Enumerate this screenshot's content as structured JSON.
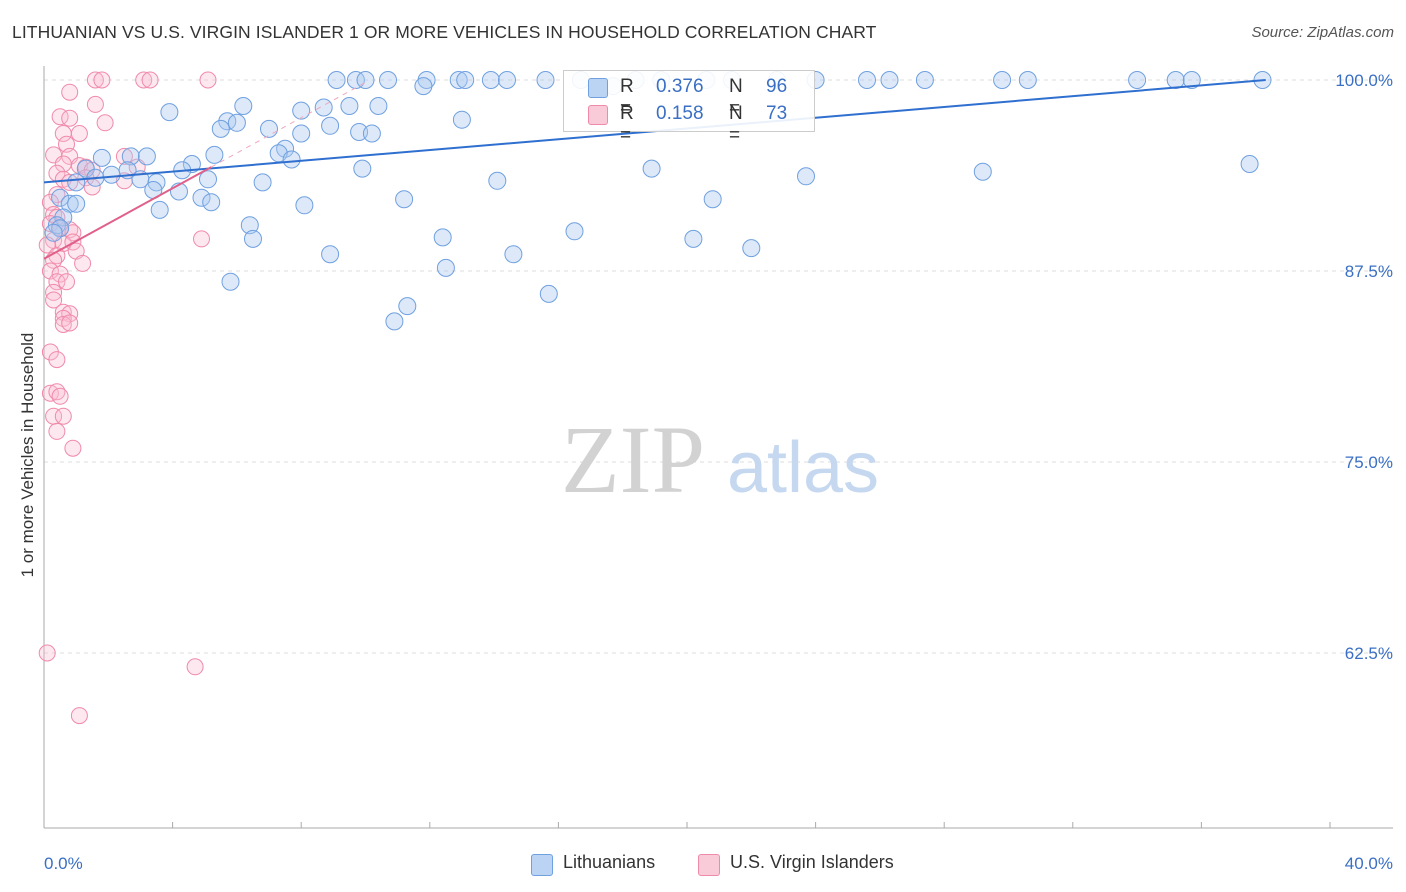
{
  "title": "LITHUANIAN VS U.S. VIRGIN ISLANDER 1 OR MORE VEHICLES IN HOUSEHOLD CORRELATION CHART",
  "source": "Source: ZipAtlas.com",
  "watermark": {
    "zip": "ZIP",
    "atlas": "atlas"
  },
  "legend": {
    "series1": {
      "r_label": "R =",
      "r_value": "0.376",
      "n_label": "N =",
      "n_value": "96"
    },
    "series2": {
      "r_label": "R =",
      "r_value": "0.158",
      "n_label": "N =",
      "n_value": "73"
    }
  },
  "bottom_legend": {
    "series1": "Lithuanians",
    "series2": "U.S. Virgin Islanders"
  },
  "colors": {
    "blue": "#6fa0e0",
    "blue_line": "#2f6fcf",
    "pink": "#f08aaa",
    "pink_line": "#e0608a",
    "axis_text": "#3a6fc4"
  },
  "chart_data": {
    "type": "scatter",
    "title": "LITHUANIAN VS U.S. VIRGIN ISLANDER 1 OR MORE VEHICLES IN HOUSEHOLD CORRELATION CHART",
    "xlabel": "",
    "ylabel": "1 or more Vehicles in Household",
    "xlim": [
      0,
      40
    ],
    "ylim": [
      50,
      101
    ],
    "x_tick_labels": [
      "0.0%",
      "40.0%"
    ],
    "y_ticks": [
      62.5,
      75.0,
      87.5,
      100.0
    ],
    "y_tick_labels": [
      "62.5%",
      "75.0%",
      "87.5%",
      "100.0%"
    ],
    "grid": "horizontal dashed",
    "series": [
      {
        "name": "Lithuanians",
        "color": "#6fa0e0",
        "trend": {
          "x": [
            0,
            38
          ],
          "y": [
            93.3,
            100.0
          ]
        },
        "points": [
          [
            9.1,
            100
          ],
          [
            9.7,
            100
          ],
          [
            10.0,
            100
          ],
          [
            10.7,
            100
          ],
          [
            11.9,
            100
          ],
          [
            12.9,
            100
          ],
          [
            13.1,
            100
          ],
          [
            13.9,
            100
          ],
          [
            14.4,
            100
          ],
          [
            15.6,
            100
          ],
          [
            16.7,
            100
          ],
          [
            18.4,
            100
          ],
          [
            19.2,
            100
          ],
          [
            20.6,
            100
          ],
          [
            21.4,
            100
          ],
          [
            22.8,
            100
          ],
          [
            24.0,
            100
          ],
          [
            25.6,
            100
          ],
          [
            26.3,
            100
          ],
          [
            27.4,
            100
          ],
          [
            29.8,
            100
          ],
          [
            30.6,
            100
          ],
          [
            34.0,
            100
          ],
          [
            35.2,
            100
          ],
          [
            35.7,
            100
          ],
          [
            37.9,
            100
          ],
          [
            11.8,
            99.6
          ],
          [
            17.7,
            99.6
          ],
          [
            10.4,
            98.3
          ],
          [
            6.2,
            98.3
          ],
          [
            8.0,
            98.0
          ],
          [
            8.7,
            98.2
          ],
          [
            9.5,
            98.3
          ],
          [
            3.9,
            97.9
          ],
          [
            5.7,
            97.3
          ],
          [
            6.0,
            97.2
          ],
          [
            5.5,
            96.8
          ],
          [
            7.0,
            96.8
          ],
          [
            8.9,
            97.0
          ],
          [
            13.0,
            97.4
          ],
          [
            8.0,
            96.5
          ],
          [
            9.8,
            96.6
          ],
          [
            10.2,
            96.5
          ],
          [
            7.5,
            95.5
          ],
          [
            5.3,
            95.1
          ],
          [
            2.7,
            95.0
          ],
          [
            3.2,
            95.0
          ],
          [
            1.8,
            94.9
          ],
          [
            4.6,
            94.5
          ],
          [
            7.3,
            95.2
          ],
          [
            7.7,
            94.8
          ],
          [
            1.3,
            94.2
          ],
          [
            1.6,
            93.6
          ],
          [
            2.1,
            93.8
          ],
          [
            2.6,
            94.1
          ],
          [
            4.3,
            94.1
          ],
          [
            3.0,
            93.5
          ],
          [
            3.5,
            93.3
          ],
          [
            1.0,
            93.3
          ],
          [
            3.4,
            92.8
          ],
          [
            4.2,
            92.7
          ],
          [
            5.1,
            93.5
          ],
          [
            6.8,
            93.3
          ],
          [
            9.9,
            94.2
          ],
          [
            14.1,
            93.4
          ],
          [
            18.9,
            94.2
          ],
          [
            23.7,
            93.7
          ],
          [
            29.2,
            94.0
          ],
          [
            37.5,
            94.5
          ],
          [
            0.5,
            92.3
          ],
          [
            0.8,
            91.9
          ],
          [
            1.0,
            91.9
          ],
          [
            4.9,
            92.3
          ],
          [
            5.2,
            92.0
          ],
          [
            11.2,
            92.2
          ],
          [
            3.6,
            91.5
          ],
          [
            8.1,
            91.8
          ],
          [
            20.8,
            92.2
          ],
          [
            0.6,
            91.0
          ],
          [
            0.4,
            90.5
          ],
          [
            0.5,
            90.3
          ],
          [
            0.3,
            90.0
          ],
          [
            6.4,
            90.5
          ],
          [
            16.5,
            90.1
          ],
          [
            12.4,
            89.7
          ],
          [
            6.5,
            89.6
          ],
          [
            20.2,
            89.6
          ],
          [
            14.6,
            88.6
          ],
          [
            22.0,
            89.0
          ],
          [
            8.9,
            88.6
          ],
          [
            12.5,
            87.7
          ],
          [
            5.8,
            86.8
          ],
          [
            15.7,
            86.0
          ],
          [
            11.3,
            85.2
          ],
          [
            10.9,
            84.2
          ]
        ]
      },
      {
        "name": "U.S. Virgin Islanders",
        "color": "#f08aaa",
        "trend": {
          "x": [
            0,
            5.2
          ],
          "y": [
            88.3,
            94.3
          ]
        },
        "points": [
          [
            1.6,
            100
          ],
          [
            1.8,
            100
          ],
          [
            3.1,
            100
          ],
          [
            3.3,
            100
          ],
          [
            5.1,
            100
          ],
          [
            0.8,
            99.2
          ],
          [
            1.6,
            98.4
          ],
          [
            0.5,
            97.6
          ],
          [
            0.8,
            97.5
          ],
          [
            1.9,
            97.2
          ],
          [
            0.6,
            96.5
          ],
          [
            1.1,
            96.5
          ],
          [
            0.7,
            95.8
          ],
          [
            0.3,
            95.1
          ],
          [
            0.8,
            95.0
          ],
          [
            2.5,
            95.0
          ],
          [
            0.6,
            94.5
          ],
          [
            1.1,
            94.4
          ],
          [
            1.3,
            94.3
          ],
          [
            1.5,
            94.1
          ],
          [
            0.4,
            93.9
          ],
          [
            2.9,
            94.3
          ],
          [
            0.6,
            93.5
          ],
          [
            0.8,
            93.3
          ],
          [
            1.3,
            93.6
          ],
          [
            2.5,
            93.4
          ],
          [
            1.5,
            93.0
          ],
          [
            0.4,
            92.5
          ],
          [
            0.2,
            92.0
          ],
          [
            0.3,
            91.2
          ],
          [
            0.4,
            91.0
          ],
          [
            0.2,
            90.6
          ],
          [
            0.5,
            90.3
          ],
          [
            0.8,
            90.2
          ],
          [
            0.9,
            90.0
          ],
          [
            0.3,
            89.5
          ],
          [
            0.6,
            89.3
          ],
          [
            0.9,
            89.4
          ],
          [
            0.1,
            89.2
          ],
          [
            1.0,
            88.8
          ],
          [
            4.9,
            89.6
          ],
          [
            0.4,
            88.5
          ],
          [
            0.3,
            88.2
          ],
          [
            1.2,
            88.0
          ],
          [
            0.2,
            87.5
          ],
          [
            0.5,
            87.3
          ],
          [
            0.4,
            86.8
          ],
          [
            0.7,
            86.8
          ],
          [
            0.3,
            86.1
          ],
          [
            0.3,
            85.6
          ],
          [
            0.6,
            84.8
          ],
          [
            0.8,
            84.7
          ],
          [
            0.6,
            84.4
          ],
          [
            0.6,
            84.0
          ],
          [
            0.8,
            84.1
          ],
          [
            0.2,
            82.2
          ],
          [
            0.4,
            81.7
          ],
          [
            0.2,
            79.5
          ],
          [
            0.4,
            79.6
          ],
          [
            0.5,
            79.3
          ],
          [
            0.3,
            78.0
          ],
          [
            0.6,
            78.0
          ],
          [
            0.4,
            77.0
          ],
          [
            0.9,
            75.9
          ],
          [
            0.1,
            62.5
          ],
          [
            4.7,
            61.6
          ],
          [
            1.1,
            58.4
          ]
        ]
      }
    ]
  }
}
